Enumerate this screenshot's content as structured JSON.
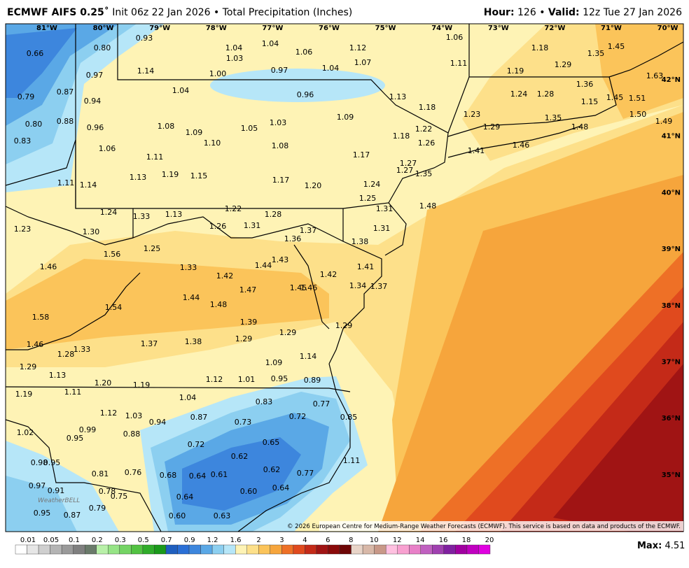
{
  "header": {
    "title_bold": "ECMWF AIFS 0.25˚",
    "title_rest": "Init 06z 22 Jan 2026 • Total Precipitation (Inches)",
    "hour_label": "Hour:",
    "hour": "126",
    "sep": "•",
    "valid_label": "Valid:",
    "valid": "12z Tue 27 Jan 2026"
  },
  "map": {
    "longitudes": [
      "81°W",
      "80°W",
      "79°W",
      "78°W",
      "77°W",
      "76°W",
      "75°W",
      "74°W",
      "73°W",
      "72°W",
      "71°W",
      "70°W"
    ],
    "latitudes": [
      "42°N",
      "41°N",
      "40°N",
      "39°N",
      "38°N",
      "37°N",
      "36°N",
      "35°N"
    ],
    "values": [
      "0.66",
      "0.80",
      "0.93",
      "0.97",
      "1.14",
      "1.04",
      "1.03",
      "1.04",
      "1.06",
      "1.12",
      "1.07",
      "1.04",
      "1.00",
      "0.97",
      "0.96",
      "1.04",
      "0.79",
      "0.87",
      "0.94",
      "0.80",
      "0.88",
      "0.96",
      "0.83",
      "1.06",
      "1.08",
      "1.09",
      "1.10",
      "1.05",
      "1.03",
      "1.09",
      "1.08",
      "1.11",
      "1.13",
      "1.19",
      "1.15",
      "1.17",
      "1.20",
      "1.17",
      "1.24",
      "1.11",
      "1.14",
      "1.06",
      "1.11",
      "1.13",
      "1.18",
      "1.22",
      "1.18",
      "1.26",
      "1.27",
      "1.27",
      "1.35",
      "1.18",
      "1.35",
      "1.45",
      "1.19",
      "1.29",
      "1.63",
      "1.36",
      "1.24",
      "1.28",
      "1.15",
      "1.45",
      "1.51",
      "1.23",
      "1.29",
      "1.35",
      "1.48",
      "1.50",
      "1.49",
      "1.41",
      "1.46",
      "1.25",
      "1.31",
      "1.48",
      "1.31",
      "1.38",
      "1.24",
      "1.33",
      "1.13",
      "1.22",
      "1.28",
      "1.26",
      "1.31",
      "1.23",
      "1.30",
      "1.37",
      "1.36",
      "1.25",
      "1.56",
      "1.46",
      "1.33",
      "1.44",
      "1.43",
      "1.42",
      "1.42",
      "1.41",
      "1.47",
      "1.45",
      "1.46",
      "1.34",
      "1.37",
      "1.44",
      "1.48",
      "1.54",
      "1.58",
      "1.39",
      "1.29",
      "1.29",
      "1.29",
      "1.37",
      "1.38",
      "1.46",
      "1.28",
      "1.33",
      "1.14",
      "1.09",
      "1.29",
      "1.13",
      "1.20",
      "1.19",
      "1.12",
      "1.01",
      "0.95",
      "0.89",
      "1.19",
      "1.11",
      "1.04",
      "0.83",
      "0.77",
      "1.12",
      "1.03",
      "0.94",
      "0.87",
      "0.73",
      "0.72",
      "0.85",
      "0.99",
      "0.88",
      "1.02",
      "0.95",
      "0.72",
      "0.65",
      "0.62",
      "1.11",
      "0.98",
      "0.95",
      "0.81",
      "0.76",
      "0.68",
      "0.64",
      "0.61",
      "0.62",
      "0.77",
      "0.97",
      "0.91",
      "0.78",
      "0.75",
      "0.64",
      "0.60",
      "0.64",
      "0.79",
      "0.87",
      "0.95",
      "0.60",
      "0.63"
    ],
    "logo": "WeatherBELL"
  },
  "colorbar": {
    "labels": [
      "0.01",
      "0.05",
      "0.1",
      "0.2",
      "0.3",
      "0.5",
      "0.7",
      "0.9",
      "1.2",
      "1.6",
      "2",
      "3",
      "4",
      "6",
      "8",
      "10",
      "12",
      "14",
      "16",
      "18",
      "20"
    ]
  },
  "footer": {
    "copyright": "© 2026 European Centre for Medium-Range Weather Forecasts (ECMWF). This service is based on data and products of the ECMWF.",
    "max_label": "Max:",
    "max": "4.51"
  }
}
